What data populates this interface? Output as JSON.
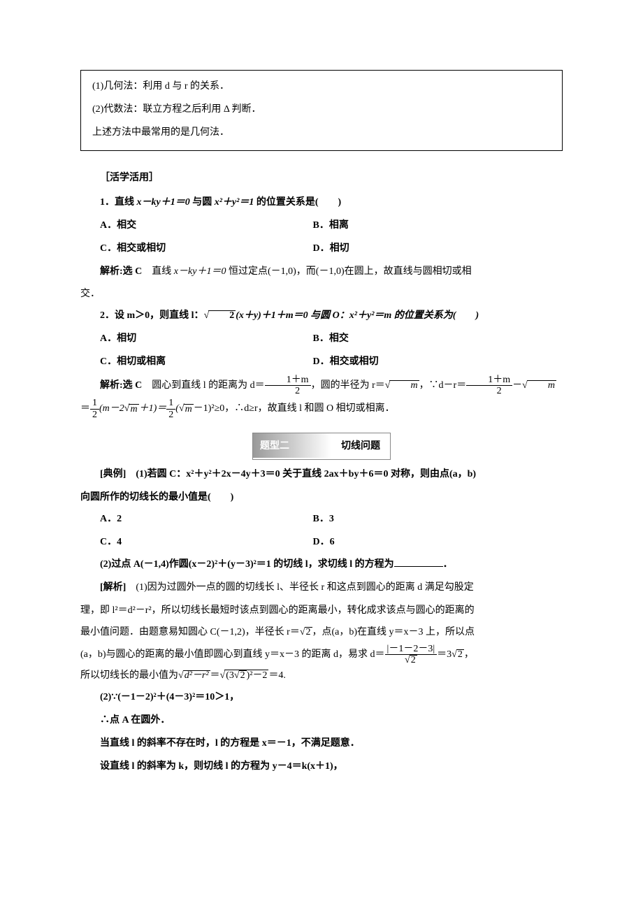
{
  "box": {
    "l1": "(1)几何法：利用 d 与 r 的关系．",
    "l2": "(2)代数法：联立方程之后利用 Δ 判断．",
    "l3": "上述方法中最常用的是几何法．"
  },
  "sec1": "［活学活用］",
  "q1": {
    "stem_pre": "1．直线 ",
    "eq1": "x－ky＋1＝0",
    "mid": " 与圆 ",
    "eq2": "x²＋y²＝1",
    "tail": " 的位置关系是(　　)",
    "a": "A．相交",
    "b": "B．相离",
    "c": "C．相交或相切",
    "d": "D．相切",
    "sol_label": "解析:",
    "sol_ans": "选 C　",
    "sol_text_pre": "直线 ",
    "sol_eq": "x－ky＋1＝0",
    "sol_text_mid": " 恒过定点(－1,0)，而(－1,0)在圆上，故直线与圆相切或相",
    "sol_text_end": "交．"
  },
  "q2": {
    "stem_pre": "2．设 m＞0，则直线 l：",
    "eq_rad": "2",
    "eq_mid": "(x＋y)＋1＋m＝0 与圆 O：x²＋y²＝m 的位置关系为(　　)",
    "a": "A．相切",
    "b": "B．相交",
    "c": "C．相切或相离",
    "d": "D．相交或相切",
    "sol_label": "解析:",
    "sol_ans": "选 C　",
    "sol_t1": "圆心到直线 l 的距离为 d＝",
    "f1num": "1＋m",
    "f1den": "2",
    "sol_t2": "，圆的半径为 r＝",
    "r_rad": "m",
    "sol_t3": "，∵d－r＝",
    "f2num": "1＋m",
    "f2den": "2",
    "sol_t4": "－",
    "rad_m": "m",
    "line2_pre": "＝",
    "half_a": "1",
    "half_b": "2",
    "l2_mid1": "(m－2",
    "rad_m2": "m",
    "l2_mid2": "＋1)＝",
    "l2_mid3": "(",
    "rad_m3": "m",
    "l2_mid4": "－1)²≥0，∴d≥r，故直线 l 和圆 O 相切或相离．"
  },
  "tag": {
    "left": "题型二",
    "right": "切线问题"
  },
  "ex": {
    "label": "[典例]　",
    "p1a": "(1)若圆 C：x²＋y²＋2x－4y＋3＝0 关于直线 2ax＋by＋6＝0 对称，则由点(a，b)",
    "p1b": "向圆所作的切线长的最小值是(　　)",
    "a": "A．2",
    "b": "B．3",
    "c": "C．4",
    "d": "D．6",
    "p2_pre": "(2)过点 A(－1,4)作圆(x－2)²＋(y－3)²＝1 的切线 l，求切线 l 的方程为",
    "p2_tail": "．",
    "sol_label": "[解析]　",
    "s1_a": "(1)因为过圆外一点的圆的切线长 l、半径长 r 和这点到圆心的距离 d 满足勾股定",
    "s1_b": "理，即 l²＝d²－r²，所以切线长最短时该点到圆心的距离最小，转化成求该点与圆心的距离的",
    "s1_c_pre": "最小值问题．由题意易知圆心 C(－1,2)，半径长 r＝",
    "s1_c_rad": "2",
    "s1_c_mid": "，点(a，b)在直线 y＝x－3 上，所以点",
    "s1_d_pre": "(a，b)与圆心的距离的最小值即圆心到直线 y＝x－3 的距离 d，易求 d＝",
    "s1_d_num": "|－1－2－3|",
    "s1_d_den_rad": "2",
    "s1_d_eq": "＝3",
    "s1_d_rad2": "2",
    "s1_d_tail": "，",
    "s1_e_pre": "所以切线长的最小值为",
    "s1_e_in1": "d²－r²",
    "s1_e_mid": "＝",
    "s1_e_in2_pre": "(3",
    "s1_e_in2_rad": "2",
    "s1_e_in2_tail": ")²－2",
    "s1_e_end": "＝4.",
    "s2_a": "(2)∵(－1－2)²＋(4－3)²＝10＞1，",
    "s2_b": "∴点 A 在圆外．",
    "s2_c": "当直线 l 的斜率不存在时，l 的方程是 x＝－1，不满足题意．",
    "s2_d": "设直线 l 的斜率为 k，则切线 l 的方程为 y－4＝k(x＋1)，"
  }
}
